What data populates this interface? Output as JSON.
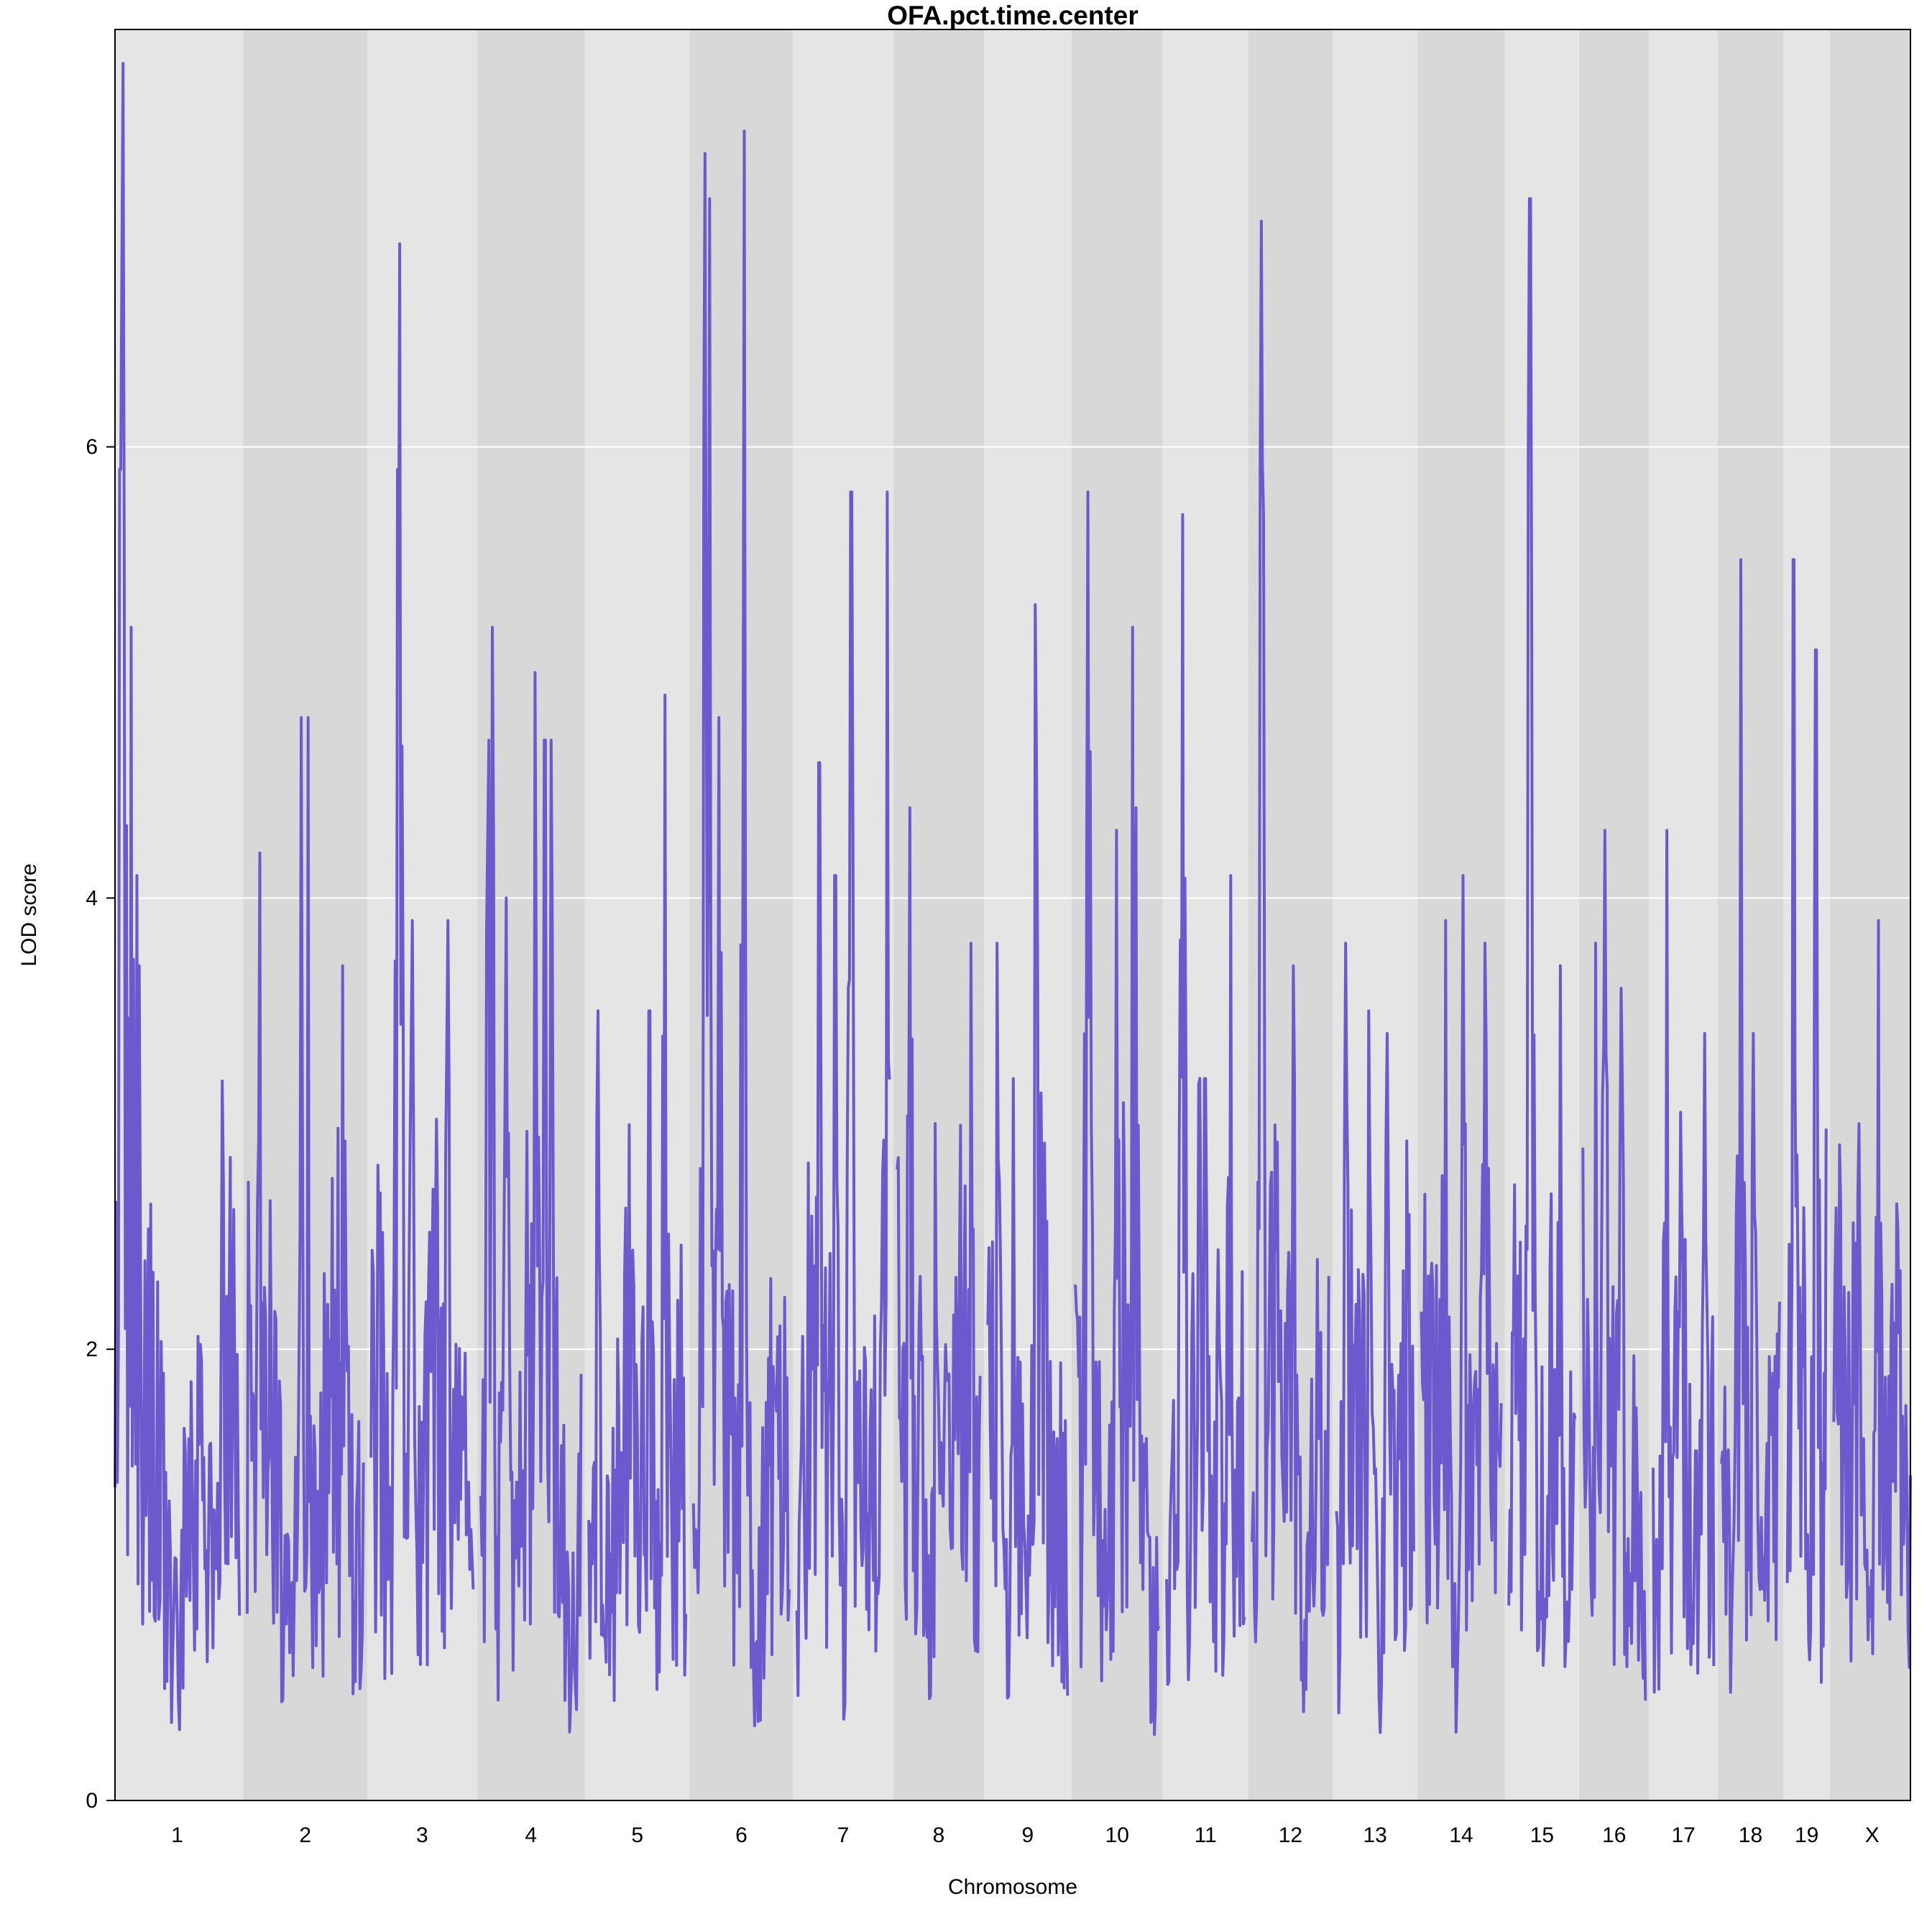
{
  "chart_data": {
    "type": "line",
    "title": "OFA.pct.time.center",
    "xlabel": "Chromosome",
    "ylabel": "LOD score",
    "ylim": [
      0,
      7.85
    ],
    "yticks": [
      0,
      2,
      4,
      6
    ],
    "grid": true,
    "line_color": "#6a5acd",
    "band_colors": [
      "#e5e5e5",
      "#d8d8d8"
    ],
    "chromosomes": [
      {
        "name": "1",
        "length": 195,
        "peaks": [
          [
            12,
            7.7
          ],
          [
            8,
            5.9
          ],
          [
            15,
            5.6
          ],
          [
            25,
            5.2
          ],
          [
            34,
            4.1
          ],
          [
            38,
            3.7
          ]
        ]
      },
      {
        "name": "2",
        "length": 182,
        "peaks": [
          [
            20,
            4.2
          ],
          [
            85,
            4.8
          ],
          [
            95,
            4.8
          ],
          [
            150,
            3.7
          ]
        ]
      },
      {
        "name": "3",
        "length": 160,
        "peaks": [
          [
            45,
            6.9
          ],
          [
            42,
            5.9
          ],
          [
            65,
            3.9
          ],
          [
            120,
            3.9
          ]
        ]
      },
      {
        "name": "4",
        "length": 157,
        "peaks": [
          [
            18,
            5.2
          ],
          [
            12,
            4.7
          ],
          [
            85,
            5.0
          ],
          [
            100,
            4.7
          ],
          [
            110,
            4.7
          ],
          [
            40,
            4.0
          ]
        ]
      },
      {
        "name": "5",
        "length": 152,
        "peaks": [
          [
            120,
            4.9
          ],
          [
            95,
            3.5
          ],
          [
            15,
            3.5
          ]
        ]
      },
      {
        "name": "6",
        "length": 150,
        "peaks": [
          [
            18,
            7.3
          ],
          [
            25,
            7.1
          ],
          [
            80,
            7.4
          ],
          [
            40,
            4.8
          ]
        ]
      },
      {
        "name": "7",
        "length": 145,
        "peaks": [
          [
            85,
            5.8
          ],
          [
            142,
            5.8
          ],
          [
            35,
            4.6
          ],
          [
            60,
            4.1
          ]
        ]
      },
      {
        "name": "8",
        "length": 130,
        "peaks": [
          [
            20,
            4.4
          ],
          [
            115,
            3.8
          ],
          [
            60,
            3.0
          ]
        ]
      },
      {
        "name": "9",
        "length": 125,
        "peaks": [
          [
            75,
            5.3
          ],
          [
            15,
            3.8
          ],
          [
            40,
            3.2
          ]
        ]
      },
      {
        "name": "10",
        "length": 131,
        "peaks": [
          [
            20,
            5.8
          ],
          [
            90,
            5.2
          ],
          [
            65,
            4.3
          ],
          [
            95,
            4.4
          ]
        ]
      },
      {
        "name": "11",
        "length": 122,
        "peaks": [
          [
            25,
            5.7
          ],
          [
            100,
            4.1
          ],
          [
            60,
            3.2
          ]
        ]
      },
      {
        "name": "12",
        "length": 120,
        "peaks": [
          [
            15,
            7.0
          ],
          [
            65,
            3.7
          ]
        ]
      },
      {
        "name": "13",
        "length": 121,
        "peaks": [
          [
            15,
            3.8
          ],
          [
            50,
            3.5
          ],
          [
            80,
            3.4
          ]
        ]
      },
      {
        "name": "14",
        "length": 125,
        "peaks": [
          [
            38,
            3.9
          ],
          [
            65,
            4.1
          ],
          [
            100,
            3.8
          ]
        ]
      },
      {
        "name": "15",
        "length": 104,
        "peaks": [
          [
            33,
            7.1
          ],
          [
            30,
            6.0
          ],
          [
            80,
            3.7
          ]
        ]
      },
      {
        "name": "16",
        "length": 98,
        "peaks": [
          [
            35,
            4.3
          ],
          [
            20,
            3.8
          ],
          [
            60,
            3.6
          ]
        ]
      },
      {
        "name": "17",
        "length": 95,
        "peaks": [
          [
            22,
            4.3
          ],
          [
            80,
            3.4
          ]
        ]
      },
      {
        "name": "18",
        "length": 91,
        "peaks": [
          [
            30,
            5.5
          ],
          [
            50,
            3.4
          ]
        ]
      },
      {
        "name": "19",
        "length": 61,
        "peaks": [
          [
            10,
            5.5
          ],
          [
            45,
            5.1
          ]
        ]
      },
      {
        "name": "X",
        "length": 120,
        "peaks": [
          [
            70,
            3.9
          ],
          [
            40,
            3.0
          ]
        ]
      }
    ]
  }
}
